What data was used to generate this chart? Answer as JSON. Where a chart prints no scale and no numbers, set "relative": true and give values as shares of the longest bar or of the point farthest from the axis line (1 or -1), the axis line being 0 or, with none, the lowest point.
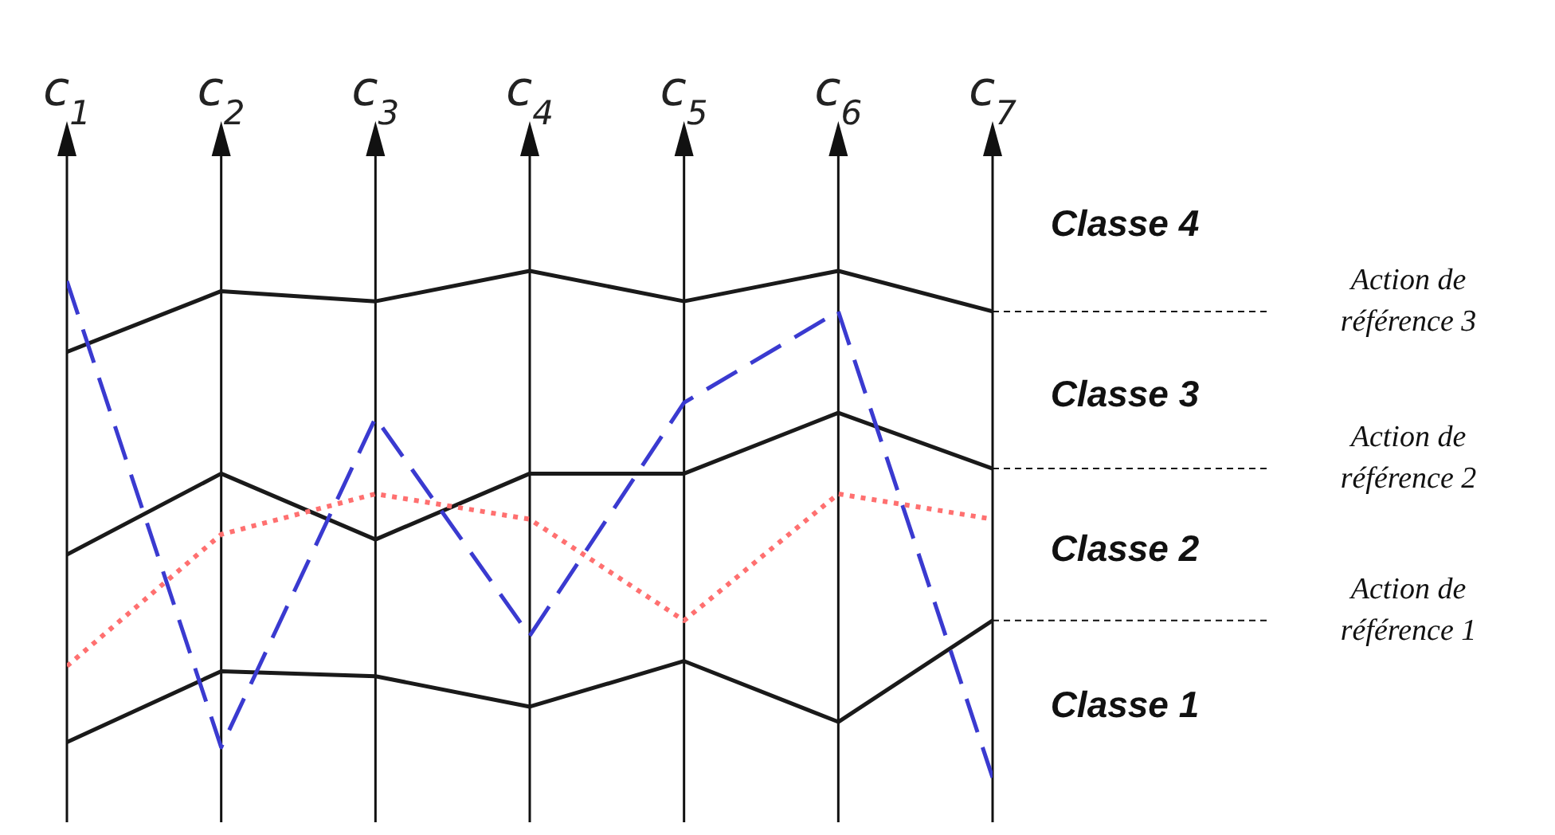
{
  "chart_data": {
    "type": "line",
    "relative": true,
    "grid": "x",
    "marker": "none",
    "categories": [
      "c$_{1}$",
      "c$_{2}$",
      "c$_{3}$",
      "c$_{4}$",
      "c$_{5}$",
      "c$_{6}$",
      "c$_{7}$"
    ],
    "series": [
      {
        "name": "Action de référence 3",
        "color": "#1a1a1a",
        "line_style": "solid",
        "values": [
          0.84,
          0.96,
          0.94,
          1.0,
          0.94,
          1.0,
          0.92
        ]
      },
      {
        "name": "Action de référence 2",
        "color": "#1a1a1a",
        "line_style": "solid",
        "values": [
          0.44,
          0.6,
          0.47,
          0.6,
          0.6,
          0.72,
          0.61
        ]
      },
      {
        "name": "Action de référence 1",
        "color": "#1a1a1a",
        "line_style": "solid",
        "values": [
          0.07,
          0.21,
          0.2,
          0.14,
          0.23,
          0.11,
          0.31
        ]
      },
      {
        "color": "#3a3ad0",
        "line_style": "dashed",
        "values": [
          0.98,
          0.06,
          0.71,
          0.28,
          0.74,
          0.92,
          0.0
        ]
      },
      {
        "color": "#ff7070",
        "line_style": "dotted",
        "values": [
          0.22,
          0.48,
          0.56,
          0.51,
          0.31,
          0.56,
          0.51
        ]
      }
    ],
    "annotations": [
      "Classe 4",
      "Classe 3",
      "Classe 2",
      "Classe 1"
    ]
  }
}
